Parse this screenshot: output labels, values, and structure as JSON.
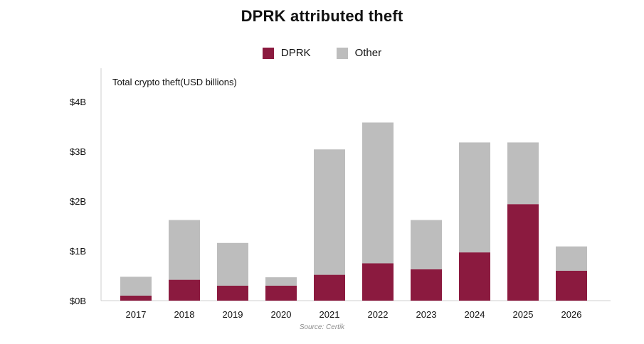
{
  "title": "DPRK attributed theft",
  "legend": [
    {
      "label": "DPRK",
      "color": "#8b1a3f"
    },
    {
      "label": "Other",
      "color": "#bdbdbd"
    }
  ],
  "source": "Source: Certik",
  "chart_data": {
    "type": "bar",
    "stacked": true,
    "title": "DPRK attributed theft",
    "ylabel": "Total crypto theft(USD billions)",
    "categories": [
      "2017",
      "2018",
      "2019",
      "2020",
      "2021",
      "2022",
      "2023",
      "2024",
      "2025",
      "2026"
    ],
    "series": [
      {
        "name": "DPRK",
        "color": "#8b1a3f",
        "values": [
          0.1,
          0.42,
          0.3,
          0.3,
          0.52,
          0.75,
          0.63,
          0.97,
          1.94,
          0.6
        ]
      },
      {
        "name": "Other",
        "color": "#bdbdbd",
        "values": [
          0.38,
          1.2,
          0.86,
          0.17,
          2.52,
          2.83,
          0.99,
          2.21,
          1.24,
          0.49
        ]
      }
    ],
    "yticks": [
      {
        "value": 0,
        "label": "$0B"
      },
      {
        "value": 1,
        "label": "$1B"
      },
      {
        "value": 2,
        "label": "$2B"
      },
      {
        "value": 3,
        "label": "$3B"
      },
      {
        "value": 4,
        "label": "$4B"
      }
    ],
    "ylim": [
      0,
      4
    ],
    "grid": false,
    "legend_position": "top-center"
  }
}
